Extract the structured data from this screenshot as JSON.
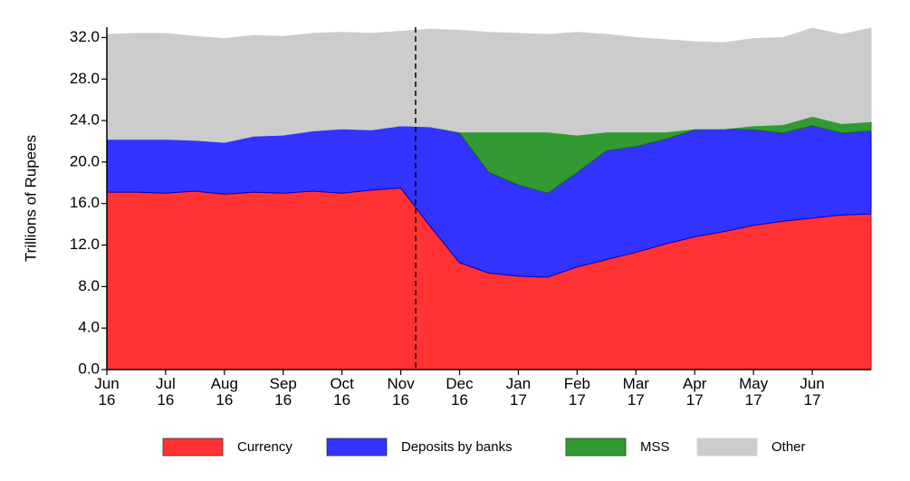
{
  "chart_data": {
    "type": "area",
    "ylabel": "Trillions of Rupees",
    "categories": [
      "Jun\n16",
      null,
      "Jul\n16",
      null,
      "Aug\n16",
      null,
      "Sep\n16",
      null,
      "Oct\n16",
      null,
      "Nov\n16",
      null,
      "Dec\n16",
      null,
      "Jan\n17",
      null,
      "Feb\n17",
      null,
      "Mar\n17",
      null,
      "Apr\n17",
      null,
      "May\n17",
      null,
      "Jun\n17",
      null,
      null
    ],
    "series": [
      {
        "name": "Currency",
        "color": "#ff3333",
        "values": [
          17.1,
          17.1,
          17.0,
          17.2,
          16.9,
          17.1,
          17.0,
          17.2,
          17.0,
          17.3,
          17.5,
          13.8,
          10.3,
          9.3,
          9.0,
          8.9,
          9.9,
          10.6,
          11.3,
          12.1,
          12.8,
          13.3,
          13.9,
          14.3,
          14.6,
          14.9,
          15.0
        ]
      },
      {
        "name": "Deposits by banks",
        "color": "#3333ff",
        "values": [
          5.1,
          5.1,
          5.2,
          4.9,
          5.0,
          5.4,
          5.6,
          5.8,
          6.2,
          5.8,
          6.0,
          9.6,
          12.5,
          9.7,
          8.8,
          8.1,
          9.1,
          10.5,
          10.2,
          10.1,
          10.3,
          9.9,
          9.2,
          8.5,
          8.9,
          7.9,
          8.0
        ]
      },
      {
        "name": "MSS",
        "color": "#339933",
        "values": [
          0,
          0,
          0,
          0,
          0,
          0,
          0,
          0,
          0,
          0,
          0,
          0,
          0.1,
          3.9,
          5.1,
          5.9,
          3.6,
          1.8,
          1.4,
          0.7,
          0.1,
          0,
          0.4,
          0.8,
          0.9,
          0.9,
          0.9
        ]
      },
      {
        "name": "Other",
        "color": "#cccccc",
        "values": [
          10.1,
          10.2,
          10.2,
          10.0,
          10.0,
          9.7,
          9.5,
          9.4,
          9.3,
          9.3,
          9.1,
          9.4,
          9.8,
          9.6,
          9.5,
          9.4,
          9.9,
          9.4,
          9.1,
          8.9,
          8.4,
          8.3,
          8.4,
          8.4,
          8.5,
          8.6,
          9.0
        ]
      }
    ],
    "ylim": [
      0,
      33
    ],
    "yticks": [
      {
        "value": 0,
        "label": "0.0"
      },
      {
        "value": 4,
        "label": "4.0"
      },
      {
        "value": 8,
        "label": "8.0"
      },
      {
        "value": 12,
        "label": "12.0"
      },
      {
        "value": 16,
        "label": "16.0"
      },
      {
        "value": 20,
        "label": "20.0"
      },
      {
        "value": 24,
        "label": "24.0"
      },
      {
        "value": 28,
        "label": "28.0"
      },
      {
        "value": 32,
        "label": "32.0"
      }
    ],
    "legend": "bottom"
  }
}
